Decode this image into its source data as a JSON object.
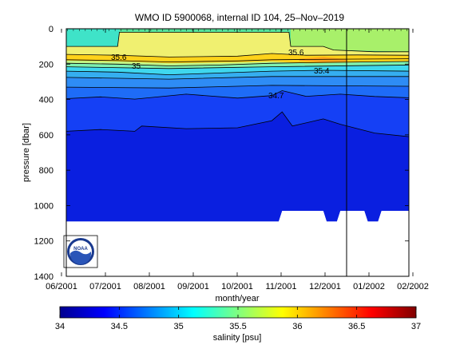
{
  "chart_data": [
    {
      "type": "heatmap",
      "title": "WMO ID 5900068, internal ID 104, 25–Nov–2019",
      "xlabel": "month/year",
      "ylabel": "pressure [dbar]",
      "x_ticks": [
        "06/2001",
        "07/2001",
        "08/2001",
        "09/2001",
        "10/2001",
        "11/2001",
        "12/2001",
        "01/2002",
        "02/2002"
      ],
      "y_ticks": [
        0,
        200,
        400,
        600,
        800,
        1000,
        1200,
        1400
      ],
      "ylim": [
        0,
        1400
      ],
      "y_reversed": true,
      "contour_labels": [
        "35.6",
        "35.6",
        "35",
        "35.4",
        "34.7"
      ],
      "contours": [
        {
          "level": 34.7,
          "x": [
            0.0,
            0.1,
            0.2,
            0.35,
            0.5,
            0.6,
            0.63,
            0.7,
            0.8,
            0.9,
            1.0
          ],
          "pressure": [
            395,
            385,
            398,
            370,
            392,
            378,
            350,
            382,
            370,
            383,
            390
          ]
        },
        {
          "level": 34.55,
          "x": [
            0.0,
            0.1,
            0.2,
            0.22,
            0.35,
            0.5,
            0.6,
            0.63,
            0.66,
            0.75,
            0.8,
            0.9,
            1.0
          ],
          "pressure": [
            580,
            570,
            580,
            550,
            565,
            560,
            520,
            470,
            550,
            510,
            540,
            590,
            610
          ]
        },
        {
          "level": 35.0,
          "x": [
            0.0,
            0.15,
            0.3,
            0.45,
            0.6,
            0.75,
            1.0
          ],
          "pressure": [
            240,
            245,
            260,
            250,
            240,
            235,
            240
          ]
        },
        {
          "level": 35.4,
          "x": [
            0.0,
            0.15,
            0.3,
            0.45,
            0.6,
            0.75,
            1.0
          ],
          "pressure": [
            195,
            200,
            210,
            205,
            195,
            190,
            185
          ]
        }
      ],
      "shallow_boundary": {
        "x": [
          0.0,
          0.15,
          0.155,
          0.65,
          0.655,
          0.75,
          0.78,
          0.9,
          1.0
        ],
        "pressure": [
          100,
          100,
          20,
          20,
          100,
          100,
          120,
          130,
          130
        ]
      },
      "bottom_depth": {
        "x": [
          0.0,
          0.62,
          0.63,
          0.75,
          0.76,
          0.79,
          0.8,
          0.87,
          0.88,
          0.91,
          0.92,
          1.0
        ],
        "pressure": [
          1090,
          1090,
          1030,
          1030,
          1090,
          1090,
          1030,
          1030,
          1090,
          1090,
          1030,
          1030
        ]
      },
      "date_marker": "12/2001",
      "colorbar": {
        "label": "salinity [psu]",
        "range": [
          34,
          37
        ],
        "ticks": [
          "34",
          "34.5",
          "35",
          "35.5",
          "36",
          "36.5",
          "37"
        ],
        "colormap": "jet"
      },
      "logo_text": "NOAA"
    }
  ]
}
